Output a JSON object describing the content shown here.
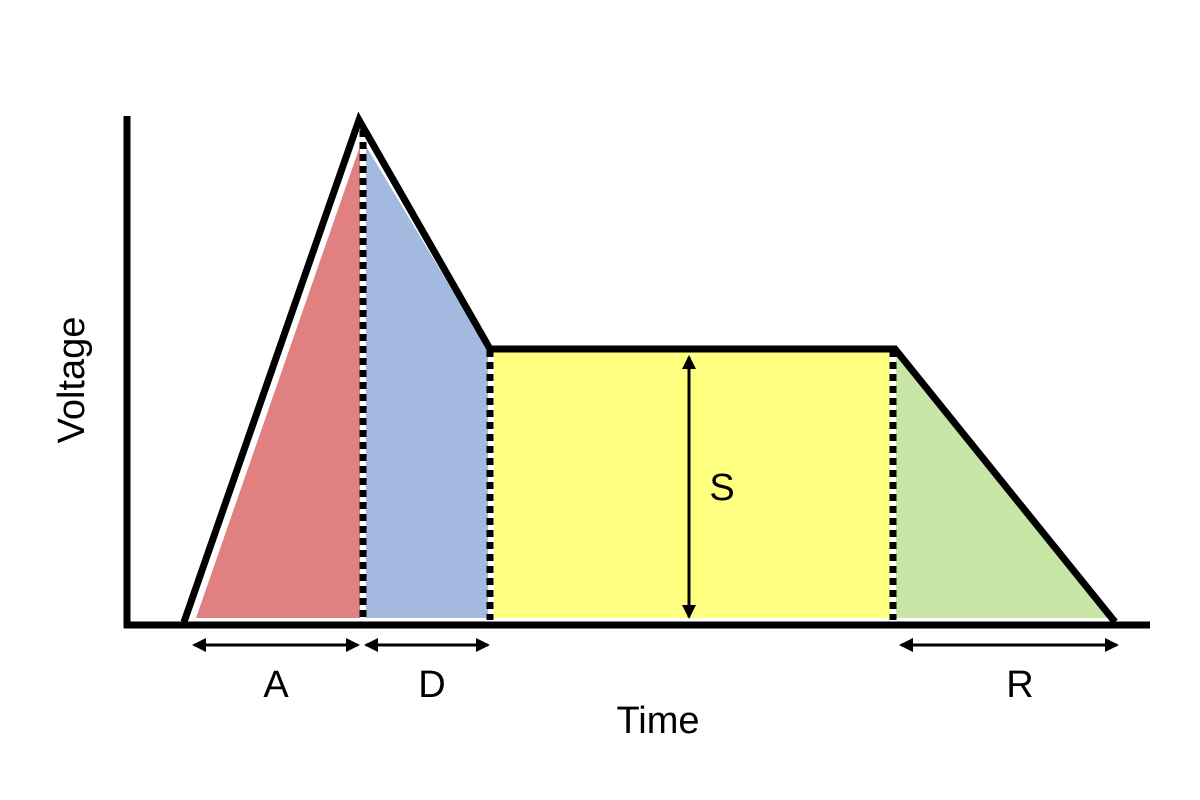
{
  "diagram": {
    "title": "",
    "y_axis_label": "Voltage",
    "x_axis_label": "Time",
    "phases": [
      {
        "key": "attack",
        "label": "A",
        "color": "#e08080"
      },
      {
        "key": "decay",
        "label": "D",
        "color": "#a3b9e0"
      },
      {
        "key": "sustain",
        "label": "S",
        "color": "#ffff80"
      },
      {
        "key": "release",
        "label": "R",
        "color": "#c8e6a6"
      }
    ],
    "line_color": "#000000"
  }
}
